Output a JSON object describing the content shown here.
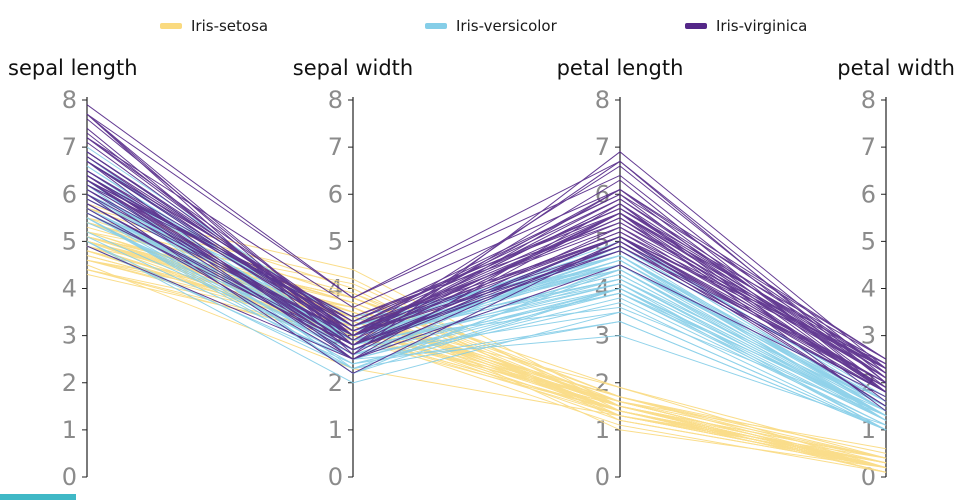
{
  "chart_data": {
    "type": "parallel-coordinates",
    "title": "",
    "axes": [
      "sepal length",
      "sepal width",
      "petal length",
      "petal width"
    ],
    "axis_range": [
      0,
      8
    ],
    "ticks": [
      0,
      1,
      2,
      3,
      4,
      5,
      6,
      7,
      8
    ],
    "legend_position": "top",
    "grid": false,
    "series": [
      {
        "name": "Iris-setosa",
        "color": "#FADA7F",
        "rows": [
          [
            5.1,
            3.5,
            1.4,
            0.2
          ],
          [
            4.9,
            3.0,
            1.4,
            0.2
          ],
          [
            4.7,
            3.2,
            1.3,
            0.2
          ],
          [
            4.6,
            3.1,
            1.5,
            0.2
          ],
          [
            5.0,
            3.6,
            1.4,
            0.2
          ],
          [
            5.4,
            3.9,
            1.7,
            0.4
          ],
          [
            4.6,
            3.4,
            1.4,
            0.3
          ],
          [
            5.0,
            3.4,
            1.5,
            0.2
          ],
          [
            4.4,
            2.9,
            1.4,
            0.2
          ],
          [
            4.9,
            3.1,
            1.5,
            0.1
          ],
          [
            5.4,
            3.7,
            1.5,
            0.2
          ],
          [
            4.8,
            3.4,
            1.6,
            0.2
          ],
          [
            4.8,
            3.0,
            1.4,
            0.1
          ],
          [
            4.3,
            3.0,
            1.1,
            0.1
          ],
          [
            5.8,
            4.0,
            1.2,
            0.2
          ],
          [
            5.7,
            4.4,
            1.5,
            0.4
          ],
          [
            5.4,
            3.9,
            1.3,
            0.4
          ],
          [
            5.1,
            3.5,
            1.4,
            0.3
          ],
          [
            5.7,
            3.8,
            1.7,
            0.3
          ],
          [
            5.1,
            3.8,
            1.5,
            0.3
          ],
          [
            5.4,
            3.4,
            1.7,
            0.2
          ],
          [
            5.1,
            3.7,
            1.5,
            0.4
          ],
          [
            4.6,
            3.6,
            1.0,
            0.2
          ],
          [
            5.1,
            3.3,
            1.7,
            0.5
          ],
          [
            4.8,
            3.4,
            1.9,
            0.2
          ],
          [
            5.0,
            3.0,
            1.6,
            0.2
          ],
          [
            5.0,
            3.4,
            1.6,
            0.4
          ],
          [
            5.2,
            3.5,
            1.5,
            0.2
          ],
          [
            5.2,
            3.4,
            1.4,
            0.2
          ],
          [
            4.7,
            3.2,
            1.6,
            0.2
          ],
          [
            4.8,
            3.1,
            1.6,
            0.2
          ],
          [
            5.4,
            3.4,
            1.5,
            0.4
          ],
          [
            5.2,
            4.1,
            1.5,
            0.1
          ],
          [
            5.5,
            4.2,
            1.4,
            0.2
          ],
          [
            4.9,
            3.1,
            1.5,
            0.2
          ],
          [
            5.0,
            3.2,
            1.2,
            0.2
          ],
          [
            5.5,
            3.5,
            1.3,
            0.2
          ],
          [
            4.9,
            3.6,
            1.4,
            0.1
          ],
          [
            4.4,
            3.0,
            1.3,
            0.2
          ],
          [
            5.1,
            3.4,
            1.5,
            0.2
          ],
          [
            5.0,
            3.5,
            1.3,
            0.3
          ],
          [
            4.5,
            2.3,
            1.3,
            0.3
          ],
          [
            4.4,
            3.2,
            1.3,
            0.2
          ],
          [
            5.0,
            3.5,
            1.6,
            0.6
          ],
          [
            5.1,
            3.8,
            1.9,
            0.4
          ],
          [
            4.8,
            3.0,
            1.4,
            0.3
          ],
          [
            5.1,
            3.8,
            1.6,
            0.2
          ],
          [
            4.6,
            3.2,
            1.4,
            0.2
          ],
          [
            5.3,
            3.7,
            1.5,
            0.2
          ],
          [
            5.0,
            3.3,
            1.4,
            0.2
          ]
        ]
      },
      {
        "name": "Iris-versicolor",
        "color": "#85CEE8",
        "rows": [
          [
            7.0,
            3.2,
            4.7,
            1.4
          ],
          [
            6.4,
            3.2,
            4.5,
            1.5
          ],
          [
            6.9,
            3.1,
            4.9,
            1.5
          ],
          [
            5.5,
            2.3,
            4.0,
            1.3
          ],
          [
            6.5,
            2.8,
            4.6,
            1.5
          ],
          [
            5.7,
            2.8,
            4.5,
            1.3
          ],
          [
            6.3,
            3.3,
            4.7,
            1.6
          ],
          [
            4.9,
            2.4,
            3.3,
            1.0
          ],
          [
            6.6,
            2.9,
            4.6,
            1.3
          ],
          [
            5.2,
            2.7,
            3.9,
            1.4
          ],
          [
            5.0,
            2.0,
            3.5,
            1.0
          ],
          [
            5.9,
            3.0,
            4.2,
            1.5
          ],
          [
            6.0,
            2.2,
            4.0,
            1.0
          ],
          [
            6.1,
            2.9,
            4.7,
            1.4
          ],
          [
            5.6,
            2.9,
            3.6,
            1.3
          ],
          [
            6.7,
            3.1,
            4.4,
            1.4
          ],
          [
            5.6,
            3.0,
            4.5,
            1.5
          ],
          [
            5.8,
            2.7,
            4.1,
            1.0
          ],
          [
            6.2,
            2.2,
            4.5,
            1.5
          ],
          [
            5.6,
            2.5,
            3.9,
            1.1
          ],
          [
            5.9,
            3.2,
            4.8,
            1.8
          ],
          [
            6.1,
            2.8,
            4.0,
            1.3
          ],
          [
            6.3,
            2.5,
            4.9,
            1.5
          ],
          [
            6.1,
            2.8,
            4.7,
            1.2
          ],
          [
            6.4,
            2.9,
            4.3,
            1.3
          ],
          [
            6.6,
            3.0,
            4.4,
            1.4
          ],
          [
            6.8,
            2.8,
            4.8,
            1.4
          ],
          [
            6.7,
            3.0,
            5.0,
            1.7
          ],
          [
            6.0,
            2.9,
            4.5,
            1.5
          ],
          [
            5.7,
            2.6,
            3.5,
            1.0
          ],
          [
            5.5,
            2.4,
            3.8,
            1.1
          ],
          [
            5.5,
            2.4,
            3.7,
            1.0
          ],
          [
            5.8,
            2.7,
            3.9,
            1.2
          ],
          [
            6.0,
            2.7,
            5.1,
            1.6
          ],
          [
            5.4,
            3.0,
            4.5,
            1.5
          ],
          [
            6.0,
            3.4,
            4.5,
            1.6
          ],
          [
            6.7,
            3.1,
            4.7,
            1.5
          ],
          [
            6.3,
            2.3,
            4.4,
            1.3
          ],
          [
            5.6,
            3.0,
            4.1,
            1.3
          ],
          [
            5.5,
            2.5,
            4.0,
            1.3
          ],
          [
            5.5,
            2.6,
            4.4,
            1.2
          ],
          [
            6.1,
            3.0,
            4.6,
            1.4
          ],
          [
            5.8,
            2.6,
            4.0,
            1.2
          ],
          [
            5.0,
            2.3,
            3.3,
            1.0
          ],
          [
            5.6,
            2.7,
            4.2,
            1.3
          ],
          [
            5.7,
            3.0,
            4.2,
            1.2
          ],
          [
            5.7,
            2.9,
            4.2,
            1.3
          ],
          [
            6.2,
            2.9,
            4.3,
            1.3
          ],
          [
            5.1,
            2.5,
            3.0,
            1.1
          ],
          [
            5.7,
            2.8,
            4.1,
            1.3
          ]
        ]
      },
      {
        "name": "Iris-virginica",
        "color": "#542788",
        "rows": [
          [
            6.3,
            3.3,
            6.0,
            2.5
          ],
          [
            5.8,
            2.7,
            5.1,
            1.9
          ],
          [
            7.1,
            3.0,
            5.9,
            2.1
          ],
          [
            6.3,
            2.9,
            5.6,
            1.8
          ],
          [
            6.5,
            3.0,
            5.8,
            2.2
          ],
          [
            7.6,
            3.0,
            6.6,
            2.1
          ],
          [
            4.9,
            2.5,
            4.5,
            1.7
          ],
          [
            7.3,
            2.9,
            6.3,
            1.8
          ],
          [
            6.7,
            2.5,
            5.8,
            1.8
          ],
          [
            7.2,
            3.6,
            6.1,
            2.5
          ],
          [
            6.5,
            3.2,
            5.1,
            2.0
          ],
          [
            6.4,
            2.7,
            5.3,
            1.9
          ],
          [
            6.8,
            3.0,
            5.5,
            2.1
          ],
          [
            5.7,
            2.5,
            5.0,
            2.0
          ],
          [
            5.8,
            2.8,
            5.1,
            2.4
          ],
          [
            6.4,
            3.2,
            5.3,
            2.3
          ],
          [
            6.5,
            3.0,
            5.5,
            1.8
          ],
          [
            7.7,
            3.8,
            6.7,
            2.2
          ],
          [
            7.7,
            2.6,
            6.9,
            2.3
          ],
          [
            6.0,
            2.2,
            5.0,
            1.5
          ],
          [
            6.9,
            3.2,
            5.7,
            2.3
          ],
          [
            5.6,
            2.8,
            4.9,
            2.0
          ],
          [
            7.7,
            2.8,
            6.7,
            2.0
          ],
          [
            6.3,
            2.7,
            4.9,
            1.8
          ],
          [
            6.7,
            3.3,
            5.7,
            2.1
          ],
          [
            7.2,
            3.2,
            6.0,
            1.8
          ],
          [
            6.2,
            2.8,
            4.8,
            1.8
          ],
          [
            6.1,
            3.0,
            4.9,
            1.8
          ],
          [
            6.4,
            2.8,
            5.6,
            2.1
          ],
          [
            7.2,
            3.0,
            5.8,
            1.6
          ],
          [
            7.4,
            2.8,
            6.1,
            1.9
          ],
          [
            7.9,
            3.8,
            6.4,
            2.0
          ],
          [
            6.4,
            2.8,
            5.6,
            2.2
          ],
          [
            6.3,
            2.8,
            5.1,
            1.5
          ],
          [
            6.1,
            2.6,
            5.6,
            1.4
          ],
          [
            7.7,
            3.0,
            6.1,
            2.3
          ],
          [
            6.3,
            3.4,
            5.6,
            2.4
          ],
          [
            6.4,
            3.1,
            5.5,
            1.8
          ],
          [
            6.0,
            3.0,
            4.8,
            1.8
          ],
          [
            6.9,
            3.1,
            5.4,
            2.1
          ],
          [
            6.7,
            3.1,
            5.6,
            2.4
          ],
          [
            6.9,
            3.1,
            5.1,
            2.3
          ],
          [
            5.8,
            2.7,
            5.1,
            1.9
          ],
          [
            6.8,
            3.2,
            5.9,
            2.3
          ],
          [
            6.7,
            3.3,
            5.7,
            2.5
          ],
          [
            6.7,
            3.0,
            5.2,
            2.3
          ],
          [
            6.3,
            2.5,
            5.0,
            1.9
          ],
          [
            6.5,
            3.0,
            5.2,
            2.0
          ],
          [
            6.2,
            3.4,
            5.4,
            2.3
          ],
          [
            5.9,
            3.0,
            5.1,
            1.8
          ]
        ]
      }
    ]
  },
  "ui": {
    "axis_line_color": "#222222",
    "tick_label_color": "#8b8b8b",
    "axis_title_color": "#111111",
    "accent_strip_color": "#3FB8C6"
  }
}
